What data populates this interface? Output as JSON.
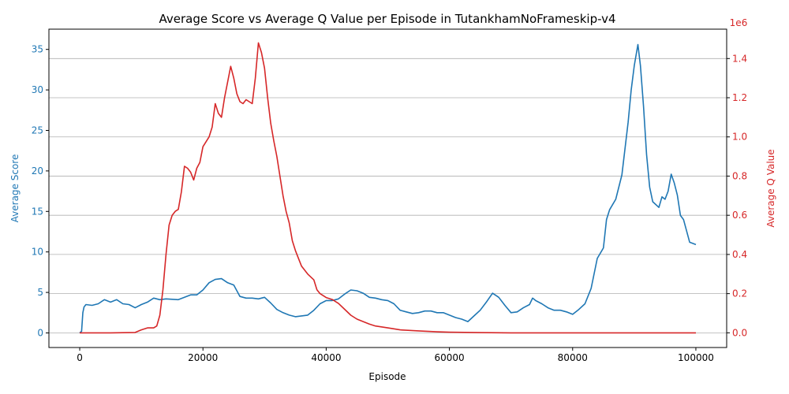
{
  "chart_data": {
    "type": "line",
    "title": "Average Score vs Average Q Value per Episode in TutankhamNoFrameskip-v4",
    "xlabel": "Episode",
    "ylabel_left": "Average Score",
    "ylabel_right": "Average Q Value",
    "right_axis_multiplier": "1e6",
    "xlim": [
      -5000,
      105000
    ],
    "ylim_left": [
      -1.8,
      37.5
    ],
    "ylim_right": [
      -0.075,
      1.55
    ],
    "x_ticks": [
      0,
      20000,
      40000,
      60000,
      80000,
      100000
    ],
    "x_tick_labels": [
      "0",
      "20000",
      "40000",
      "60000",
      "80000",
      "100000"
    ],
    "y_left_ticks": [
      0,
      5,
      10,
      15,
      20,
      25,
      30,
      35
    ],
    "y_left_tick_labels": [
      "0",
      "5",
      "10",
      "15",
      "20",
      "25",
      "30",
      "35"
    ],
    "y_right_ticks": [
      0,
      0.2,
      0.4,
      0.6,
      0.8,
      1.0,
      1.2,
      1.4
    ],
    "y_right_tick_labels": [
      "0.0",
      "0.2",
      "0.4",
      "0.6",
      "0.8",
      "1.0",
      "1.2",
      "1.4"
    ],
    "grid": "horizontal (right axis)",
    "series": [
      {
        "axis": "left",
        "color": "#1f77b4",
        "points": [
          [
            0,
            0
          ],
          [
            300,
            0.2
          ],
          [
            500,
            2.5
          ],
          [
            700,
            3.2
          ],
          [
            1000,
            3.5
          ],
          [
            2000,
            3.4
          ],
          [
            3000,
            3.6
          ],
          [
            4000,
            4.1
          ],
          [
            5000,
            3.8
          ],
          [
            6000,
            4.1
          ],
          [
            7000,
            3.6
          ],
          [
            8000,
            3.5
          ],
          [
            9000,
            3.1
          ],
          [
            10000,
            3.5
          ],
          [
            11000,
            3.8
          ],
          [
            12000,
            4.3
          ],
          [
            13000,
            4.1
          ],
          [
            14000,
            4.2
          ],
          [
            16000,
            4.1
          ],
          [
            17000,
            4.4
          ],
          [
            18000,
            4.7
          ],
          [
            19000,
            4.7
          ],
          [
            20000,
            5.3
          ],
          [
            21000,
            6.2
          ],
          [
            22000,
            6.6
          ],
          [
            23000,
            6.7
          ],
          [
            24000,
            6.2
          ],
          [
            25000,
            5.9
          ],
          [
            26000,
            4.5
          ],
          [
            27000,
            4.3
          ],
          [
            28000,
            4.3
          ],
          [
            29000,
            4.2
          ],
          [
            30000,
            4.4
          ],
          [
            31000,
            3.7
          ],
          [
            32000,
            2.9
          ],
          [
            33000,
            2.5
          ],
          [
            34000,
            2.2
          ],
          [
            35000,
            2.0
          ],
          [
            36000,
            2.1
          ],
          [
            37000,
            2.2
          ],
          [
            38000,
            2.8
          ],
          [
            39000,
            3.6
          ],
          [
            40000,
            4.0
          ],
          [
            41000,
            4.0
          ],
          [
            42000,
            4.2
          ],
          [
            43000,
            4.8
          ],
          [
            44000,
            5.3
          ],
          [
            45000,
            5.2
          ],
          [
            46000,
            4.9
          ],
          [
            47000,
            4.4
          ],
          [
            48000,
            4.3
          ],
          [
            49000,
            4.1
          ],
          [
            50000,
            4.0
          ],
          [
            51000,
            3.6
          ],
          [
            52000,
            2.8
          ],
          [
            53000,
            2.6
          ],
          [
            54000,
            2.4
          ],
          [
            55000,
            2.5
          ],
          [
            56000,
            2.7
          ],
          [
            57000,
            2.7
          ],
          [
            58000,
            2.5
          ],
          [
            59000,
            2.5
          ],
          [
            60000,
            2.2
          ],
          [
            61000,
            1.9
          ],
          [
            62000,
            1.7
          ],
          [
            63000,
            1.4
          ],
          [
            64000,
            2.1
          ],
          [
            65000,
            2.8
          ],
          [
            66000,
            3.8
          ],
          [
            67000,
            4.9
          ],
          [
            68000,
            4.4
          ],
          [
            69000,
            3.4
          ],
          [
            70000,
            2.5
          ],
          [
            71000,
            2.6
          ],
          [
            72000,
            3.1
          ],
          [
            73000,
            3.5
          ],
          [
            73500,
            4.3
          ],
          [
            74000,
            4.0
          ],
          [
            75000,
            3.6
          ],
          [
            76000,
            3.1
          ],
          [
            77000,
            2.8
          ],
          [
            78000,
            2.8
          ],
          [
            79000,
            2.6
          ],
          [
            80000,
            2.3
          ],
          [
            81000,
            2.9
          ],
          [
            82000,
            3.6
          ],
          [
            83000,
            5.5
          ],
          [
            84000,
            9.2
          ],
          [
            85000,
            10.5
          ],
          [
            85500,
            14.0
          ],
          [
            86000,
            15.2
          ],
          [
            87000,
            16.5
          ],
          [
            88000,
            19.5
          ],
          [
            89000,
            26.0
          ],
          [
            89500,
            30.0
          ],
          [
            90000,
            33.0
          ],
          [
            90600,
            35.6
          ],
          [
            91000,
            33.0
          ],
          [
            91500,
            28.0
          ],
          [
            92000,
            22.0
          ],
          [
            92500,
            18.0
          ],
          [
            93000,
            16.2
          ],
          [
            94000,
            15.5
          ],
          [
            94500,
            16.8
          ],
          [
            95000,
            16.5
          ],
          [
            95500,
            17.5
          ],
          [
            96000,
            19.6
          ],
          [
            96500,
            18.5
          ],
          [
            97000,
            17.0
          ],
          [
            97500,
            14.5
          ],
          [
            98000,
            14.0
          ],
          [
            99000,
            11.2
          ],
          [
            100000,
            10.9
          ]
        ]
      },
      {
        "axis": "right",
        "color": "#d62728",
        "points": [
          [
            0,
            0
          ],
          [
            5000,
            0
          ],
          [
            9000,
            0.002
          ],
          [
            10000,
            0.015
          ],
          [
            11000,
            0.025
          ],
          [
            12000,
            0.025
          ],
          [
            12500,
            0.035
          ],
          [
            13000,
            0.09
          ],
          [
            13500,
            0.22
          ],
          [
            14000,
            0.4
          ],
          [
            14500,
            0.55
          ],
          [
            15000,
            0.6
          ],
          [
            15500,
            0.62
          ],
          [
            16000,
            0.63
          ],
          [
            16500,
            0.72
          ],
          [
            17000,
            0.85
          ],
          [
            17500,
            0.84
          ],
          [
            18000,
            0.82
          ],
          [
            18500,
            0.78
          ],
          [
            19000,
            0.84
          ],
          [
            19500,
            0.87
          ],
          [
            20000,
            0.95
          ],
          [
            21000,
            1.0
          ],
          [
            21500,
            1.05
          ],
          [
            22000,
            1.17
          ],
          [
            22500,
            1.12
          ],
          [
            23000,
            1.1
          ],
          [
            23500,
            1.2
          ],
          [
            24000,
            1.28
          ],
          [
            24500,
            1.36
          ],
          [
            25000,
            1.3
          ],
          [
            25500,
            1.22
          ],
          [
            26000,
            1.18
          ],
          [
            26500,
            1.17
          ],
          [
            27000,
            1.19
          ],
          [
            27500,
            1.18
          ],
          [
            28000,
            1.17
          ],
          [
            28500,
            1.3
          ],
          [
            29000,
            1.48
          ],
          [
            29500,
            1.43
          ],
          [
            30000,
            1.35
          ],
          [
            30500,
            1.2
          ],
          [
            31000,
            1.07
          ],
          [
            31500,
            0.98
          ],
          [
            32000,
            0.9
          ],
          [
            32500,
            0.8
          ],
          [
            33000,
            0.7
          ],
          [
            33500,
            0.62
          ],
          [
            34000,
            0.56
          ],
          [
            34500,
            0.47
          ],
          [
            35000,
            0.42
          ],
          [
            35500,
            0.38
          ],
          [
            36000,
            0.34
          ],
          [
            37000,
            0.3
          ],
          [
            38000,
            0.27
          ],
          [
            38500,
            0.22
          ],
          [
            39000,
            0.2
          ],
          [
            40000,
            0.18
          ],
          [
            41000,
            0.17
          ],
          [
            42000,
            0.15
          ],
          [
            43000,
            0.12
          ],
          [
            44000,
            0.09
          ],
          [
            45000,
            0.07
          ],
          [
            47000,
            0.045
          ],
          [
            48000,
            0.035
          ],
          [
            50000,
            0.025
          ],
          [
            52000,
            0.015
          ],
          [
            55000,
            0.01
          ],
          [
            58000,
            0.005
          ],
          [
            60000,
            0.003
          ],
          [
            65000,
            0.001
          ],
          [
            70000,
            0
          ],
          [
            100000,
            0
          ]
        ]
      }
    ]
  }
}
